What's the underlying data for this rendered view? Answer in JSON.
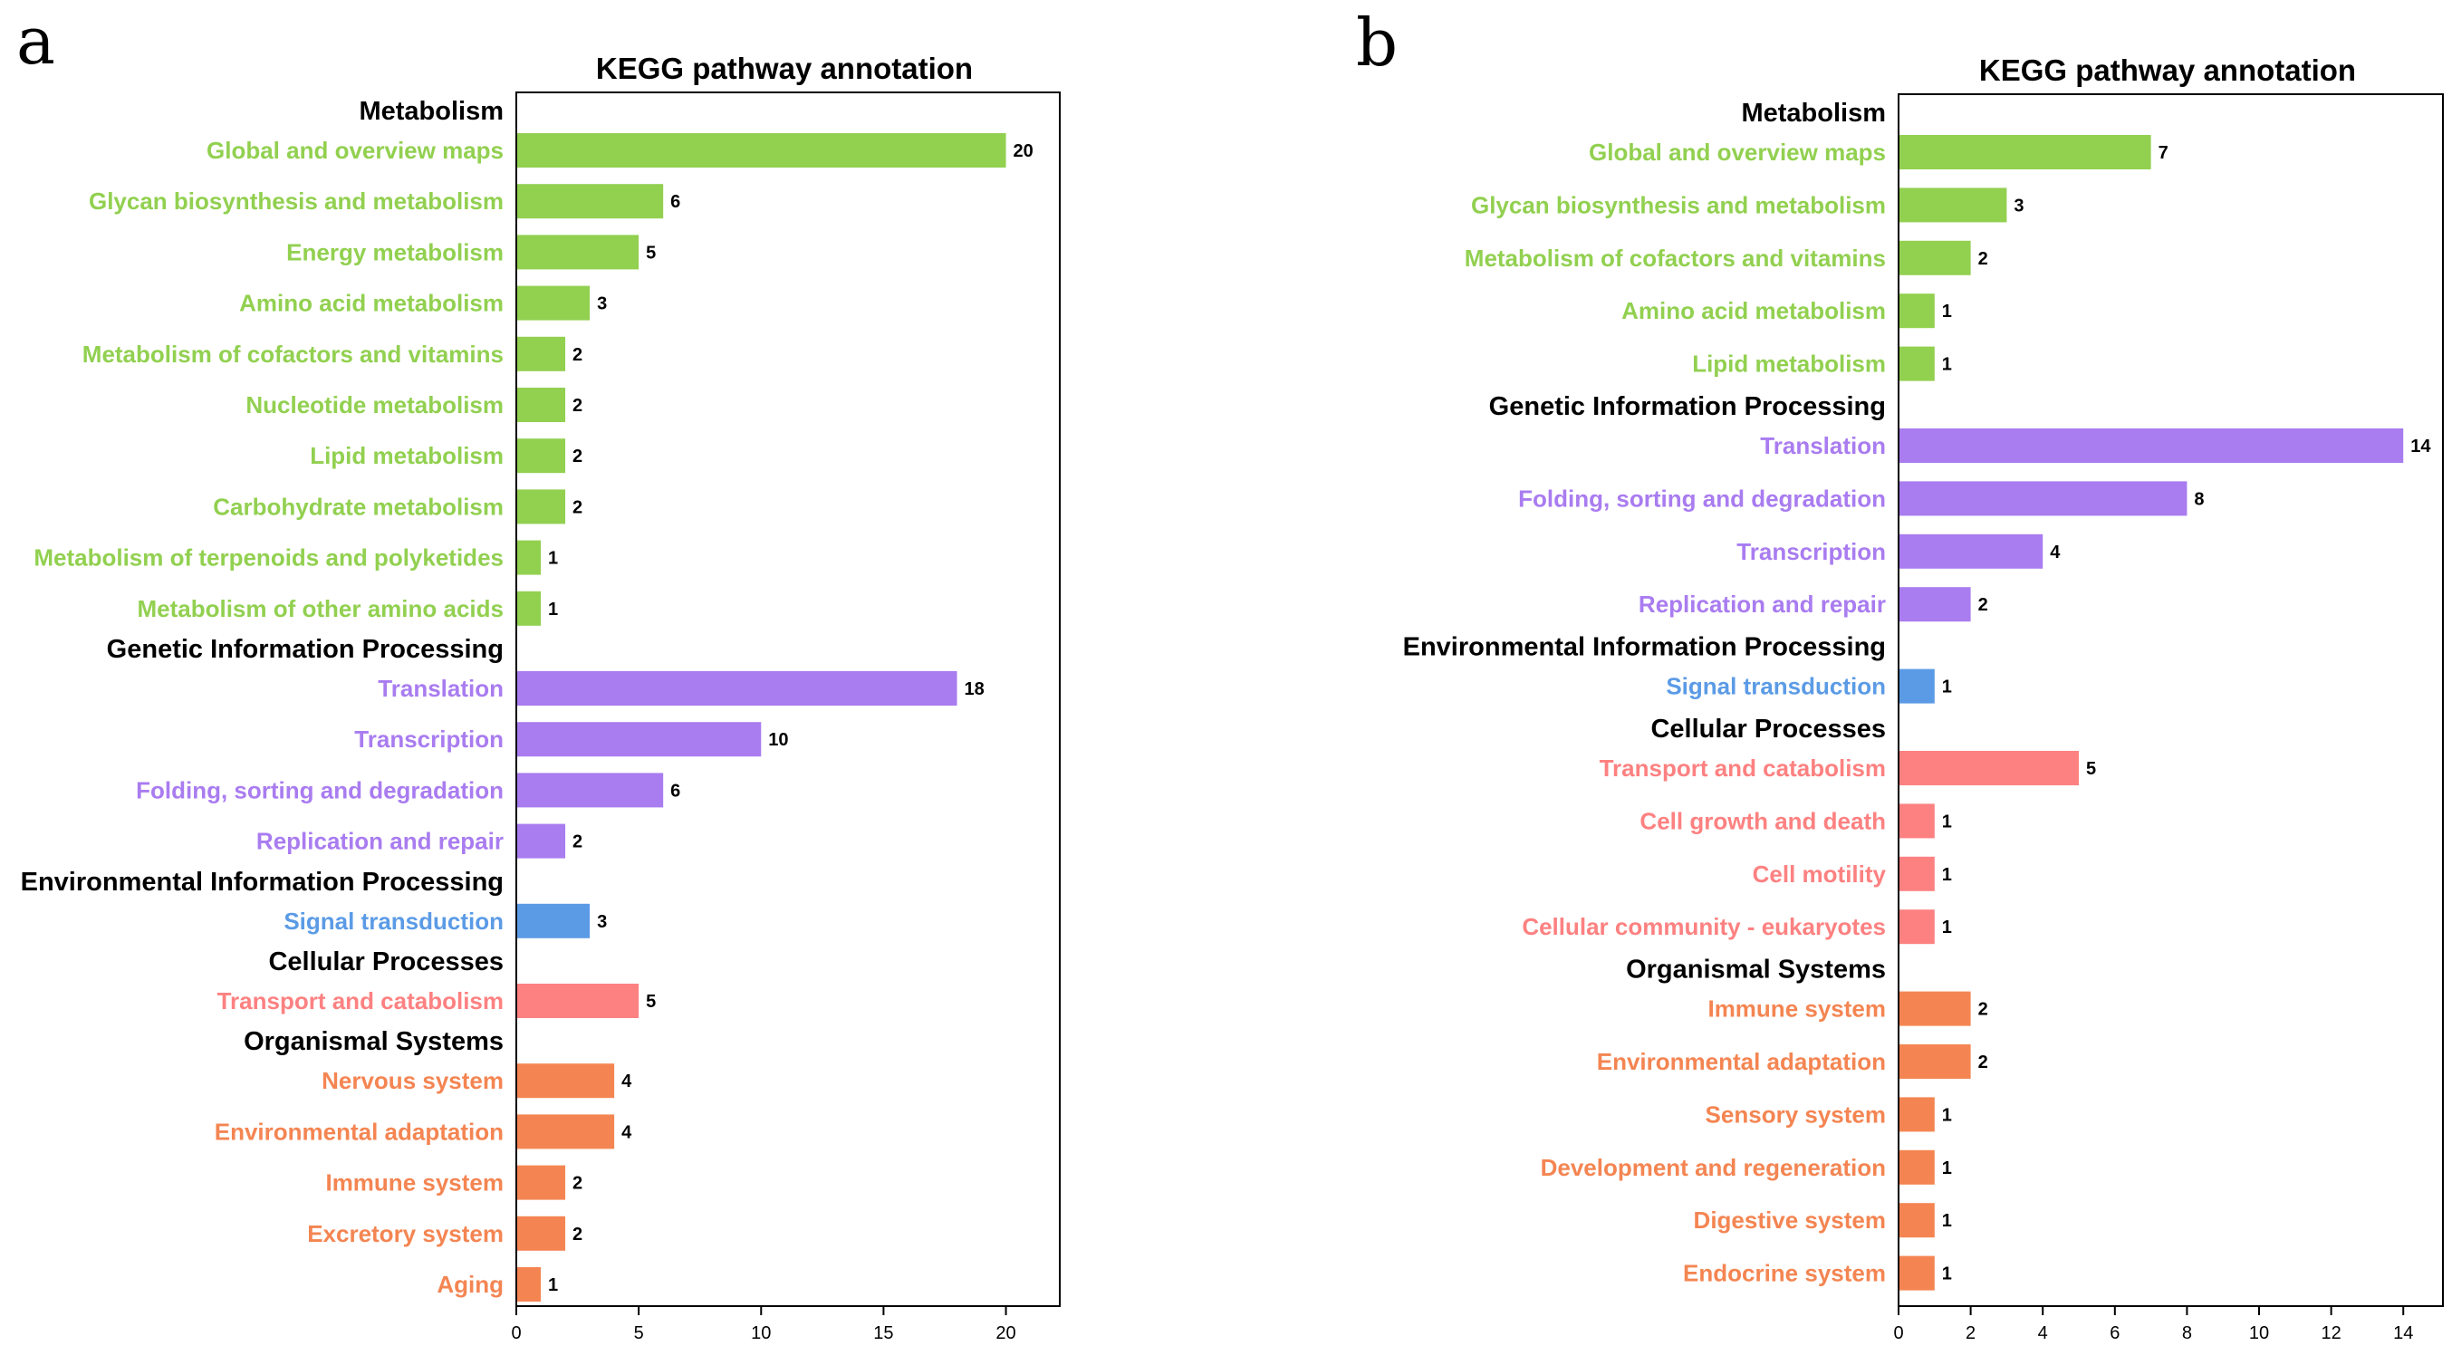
{
  "colors": {
    "Metabolism": "#92d050",
    "Genetic Information Processing": "#a97cf0",
    "Environmental Information Processing": "#5b9be6",
    "Cellular Processes": "#fd8181",
    "Organismal Systems": "#f48552"
  },
  "chart_data": [
    {
      "panel": "a",
      "type": "bar",
      "orientation": "horizontal",
      "title": "KEGG pathway annotation",
      "xlim": [
        0,
        22.2
      ],
      "xticks": [
        0,
        5,
        10,
        15,
        20
      ],
      "groups": [
        {
          "name": "Metabolism",
          "items": [
            {
              "label": "Global and overview maps",
              "value": 20
            },
            {
              "label": "Glycan biosynthesis and metabolism",
              "value": 6
            },
            {
              "label": "Energy metabolism",
              "value": 5
            },
            {
              "label": "Amino acid metabolism",
              "value": 3
            },
            {
              "label": "Metabolism of cofactors and vitamins",
              "value": 2
            },
            {
              "label": "Nucleotide metabolism",
              "value": 2
            },
            {
              "label": "Lipid metabolism",
              "value": 2
            },
            {
              "label": "Carbohydrate metabolism",
              "value": 2
            },
            {
              "label": "Metabolism of terpenoids and polyketides",
              "value": 1
            },
            {
              "label": "Metabolism of other amino acids",
              "value": 1
            }
          ]
        },
        {
          "name": "Genetic Information Processing",
          "items": [
            {
              "label": "Translation",
              "value": 18
            },
            {
              "label": "Transcription",
              "value": 10
            },
            {
              "label": "Folding, sorting and degradation",
              "value": 6
            },
            {
              "label": "Replication and repair",
              "value": 2
            }
          ]
        },
        {
          "name": "Environmental Information Processing",
          "items": [
            {
              "label": "Signal transduction",
              "value": 3
            }
          ]
        },
        {
          "name": "Cellular Processes",
          "items": [
            {
              "label": "Transport and catabolism",
              "value": 5
            }
          ]
        },
        {
          "name": "Organismal Systems",
          "items": [
            {
              "label": "Nervous system",
              "value": 4
            },
            {
              "label": "Environmental adaptation",
              "value": 4
            },
            {
              "label": "Immune system",
              "value": 2
            },
            {
              "label": "Excretory system",
              "value": 2
            },
            {
              "label": "Aging",
              "value": 1
            }
          ]
        }
      ]
    },
    {
      "panel": "b",
      "type": "bar",
      "orientation": "horizontal",
      "title": "KEGG pathway annotation",
      "xlim": [
        0,
        15.1
      ],
      "xticks": [
        0,
        2,
        4,
        6,
        8,
        10,
        12,
        14
      ],
      "groups": [
        {
          "name": "Metabolism",
          "items": [
            {
              "label": "Global and overview maps",
              "value": 7
            },
            {
              "label": "Glycan biosynthesis and metabolism",
              "value": 3
            },
            {
              "label": "Metabolism of cofactors and vitamins",
              "value": 2
            },
            {
              "label": "Amino acid metabolism",
              "value": 1
            },
            {
              "label": "Lipid metabolism",
              "value": 1
            }
          ]
        },
        {
          "name": "Genetic Information Processing",
          "items": [
            {
              "label": "Translation",
              "value": 14
            },
            {
              "label": "Folding, sorting and degradation",
              "value": 8
            },
            {
              "label": "Transcription",
              "value": 4
            },
            {
              "label": "Replication and repair",
              "value": 2
            }
          ]
        },
        {
          "name": "Environmental Information Processing",
          "items": [
            {
              "label": "Signal transduction",
              "value": 1
            }
          ]
        },
        {
          "name": "Cellular Processes",
          "items": [
            {
              "label": "Transport and catabolism",
              "value": 5
            },
            {
              "label": "Cell growth and death",
              "value": 1
            },
            {
              "label": "Cell motility",
              "value": 1
            },
            {
              "label": "Cellular community - eukaryotes",
              "value": 1
            }
          ]
        },
        {
          "name": "Organismal Systems",
          "items": [
            {
              "label": "Immune system",
              "value": 2
            },
            {
              "label": "Environmental adaptation",
              "value": 2
            },
            {
              "label": "Sensory system",
              "value": 1
            },
            {
              "label": "Development and regeneration",
              "value": 1
            },
            {
              "label": "Digestive system",
              "value": 1
            },
            {
              "label": "Endocrine system",
              "value": 1
            }
          ]
        }
      ]
    }
  ]
}
